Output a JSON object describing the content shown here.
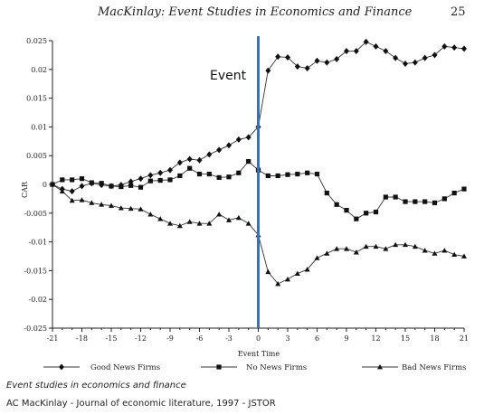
{
  "header": {
    "title": "MacKinlay: Event Studies in Economics and Finance",
    "page_number": "25"
  },
  "chart_data": {
    "type": "line",
    "title": "",
    "xlabel": "Event Time",
    "ylabel": "CAR",
    "xlim": [
      -21,
      21
    ],
    "ylim": [
      -0.025,
      0.025
    ],
    "x_ticks": [
      -21,
      -18,
      -15,
      -12,
      -9,
      -6,
      -3,
      0,
      3,
      6,
      9,
      12,
      15,
      18,
      21
    ],
    "y_ticks": [
      0.025,
      0.02,
      0.015,
      0.01,
      0.005,
      0,
      -0.005,
      -0.01,
      -0.015,
      -0.02,
      -0.025
    ],
    "y_tick_labels": [
      "0.025",
      "0.02",
      "0.015",
      "0.01",
      "0.005",
      "0",
      "-0.005",
      "-0.01",
      "-0.015",
      "-0.02",
      "-0.025"
    ],
    "grid": false,
    "legend_position": "bottom",
    "x": [
      -21,
      -20,
      -19,
      -18,
      -17,
      -16,
      -15,
      -14,
      -13,
      -12,
      -11,
      -10,
      -9,
      -8,
      -7,
      -6,
      -5,
      -4,
      -3,
      -2,
      -1,
      0,
      1,
      2,
      3,
      4,
      5,
      6,
      7,
      8,
      9,
      10,
      11,
      12,
      13,
      14,
      15,
      16,
      17,
      18,
      19,
      20,
      21
    ],
    "series": [
      {
        "name": "Good News Firms",
        "marker": "diamond",
        "values": [
          0,
          -0.0008,
          -0.0012,
          -0.0003,
          0.0002,
          -0.0001,
          -0.0003,
          -0.0001,
          0.0005,
          0.001,
          0.0016,
          0.002,
          0.0025,
          0.0038,
          0.0044,
          0.0042,
          0.0052,
          0.006,
          0.0068,
          0.0078,
          0.0082,
          0.01,
          0.0198,
          0.0222,
          0.0221,
          0.0205,
          0.0202,
          0.0215,
          0.0212,
          0.0218,
          0.0232,
          0.0232,
          0.0248,
          0.024,
          0.0232,
          0.022,
          0.021,
          0.0212,
          0.022,
          0.0225,
          0.024,
          0.0238,
          0.0236
        ]
      },
      {
        "name": "No News Firms",
        "marker": "square",
        "values": [
          0,
          0.0008,
          0.0008,
          0.001,
          0.0003,
          0.0002,
          -0.0003,
          -0.0004,
          -0.0002,
          -0.0005,
          0.0006,
          0.0007,
          0.0008,
          0.0015,
          0.0028,
          0.0018,
          0.0018,
          0.0012,
          0.0013,
          0.002,
          0.004,
          0.0025,
          0.0015,
          0.0015,
          0.0017,
          0.0018,
          0.002,
          0.0018,
          -0.0015,
          -0.0035,
          -0.0045,
          -0.006,
          -0.005,
          -0.0048,
          -0.0022,
          -0.0022,
          -0.003,
          -0.003,
          -0.003,
          -0.0032,
          -0.0025,
          -0.0015,
          -0.0008
        ]
      },
      {
        "name": "Bad News Firms",
        "marker": "triangle",
        "values": [
          0,
          -0.0012,
          -0.0028,
          -0.0027,
          -0.0032,
          -0.0035,
          -0.0037,
          -0.0041,
          -0.0042,
          -0.0043,
          -0.0052,
          -0.006,
          -0.0068,
          -0.0072,
          -0.0065,
          -0.0068,
          -0.0068,
          -0.0052,
          -0.0062,
          -0.0058,
          -0.0068,
          -0.0088,
          -0.0152,
          -0.0173,
          -0.0165,
          -0.0155,
          -0.0148,
          -0.0128,
          -0.012,
          -0.0112,
          -0.0112,
          -0.0118,
          -0.0108,
          -0.0108,
          -0.0112,
          -0.0105,
          -0.0105,
          -0.0108,
          -0.0115,
          -0.012,
          -0.0115,
          -0.0122,
          -0.0125
        ]
      }
    ],
    "annotation": {
      "text": "Event",
      "x": 0,
      "line_color": "#3b6fb6"
    }
  },
  "caption": {
    "title": "Event studies in economics and finance",
    "source": "AC MacKinlay - Journal of economic literature, 1997 - JSTOR"
  }
}
